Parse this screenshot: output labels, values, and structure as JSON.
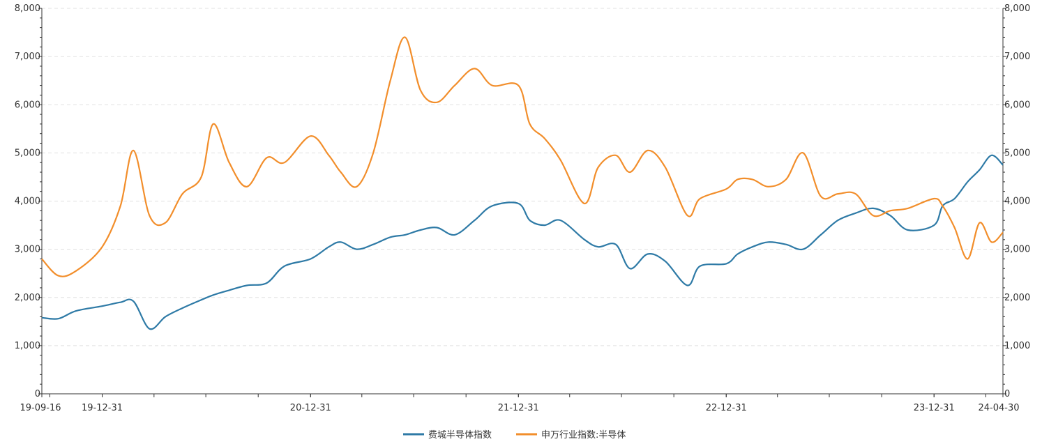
{
  "chart_data": {
    "type": "line",
    "x_tick_labels": [
      "19-09-16",
      "19-12-31",
      "20-12-31",
      "21-12-31",
      "22-12-31",
      "23-12-31",
      "24-04-30"
    ],
    "y_left": {
      "min": 0,
      "max": 8000,
      "ticks": [
        "0",
        "1,000",
        "2,000",
        "3,000",
        "4,000",
        "5,000",
        "6,000",
        "7,000",
        "8,000"
      ]
    },
    "y_right": {
      "min": 0,
      "max": 8000,
      "ticks": [
        "0",
        "1,000",
        "2,000",
        "3,000",
        "4,000",
        "5,000",
        "6,000",
        "7,000",
        "8,000"
      ]
    },
    "grid": "horizontal-dashed",
    "legend_position": "bottom-center",
    "x": [
      "19-09-16",
      "19-10-15",
      "19-11-15",
      "19-12-31",
      "20-02-01",
      "20-02-24",
      "20-03-23",
      "20-04-20",
      "20-05-20",
      "20-06-22",
      "20-07-13",
      "20-08-10",
      "20-09-10",
      "20-10-15",
      "20-11-15",
      "20-12-31",
      "21-02-01",
      "21-02-22",
      "21-03-22",
      "21-04-20",
      "21-05-20",
      "21-06-15",
      "21-07-12",
      "21-08-10",
      "21-09-10",
      "21-10-15",
      "21-11-15",
      "21-12-31",
      "22-01-20",
      "22-02-15",
      "22-03-15",
      "22-04-26",
      "22-05-20",
      "22-06-20",
      "22-07-15",
      "22-08-15",
      "22-09-15",
      "22-10-24",
      "22-11-15",
      "22-12-31",
      "23-01-20",
      "23-02-15",
      "23-03-15",
      "23-04-15",
      "23-05-15",
      "23-06-15",
      "23-07-15",
      "23-08-15",
      "23-09-15",
      "23-10-15",
      "23-11-15",
      "23-12-31",
      "24-01-15",
      "24-02-05",
      "24-02-28",
      "24-03-20",
      "24-04-10",
      "24-04-30"
    ],
    "series": [
      {
        "name": "费城半导体指数",
        "color": "#2E7AA6",
        "values": [
          1580,
          1560,
          1720,
          1820,
          1900,
          1920,
          1350,
          1600,
          1780,
          1950,
          2050,
          2150,
          2250,
          2300,
          2650,
          2800,
          3050,
          3150,
          3000,
          3100,
          3250,
          3300,
          3400,
          3450,
          3300,
          3600,
          3900,
          3950,
          3600,
          3500,
          3600,
          3200,
          3050,
          3100,
          2600,
          2900,
          2750,
          2250,
          2650,
          2700,
          2900,
          3050,
          3150,
          3100,
          3000,
          3300,
          3600,
          3750,
          3850,
          3700,
          3400,
          3500,
          3900,
          4050,
          4400,
          4650,
          4950,
          4750
        ]
      },
      {
        "name": "申万行业指数:半导体",
        "color": "#F28E2B",
        "values": [
          2800,
          2450,
          2550,
          3050,
          3900,
          5050,
          3700,
          3550,
          4150,
          4500,
          5600,
          4800,
          4300,
          4900,
          4800,
          5350,
          4950,
          4600,
          4300,
          5000,
          6500,
          7400,
          6300,
          6050,
          6400,
          6750,
          6400,
          6400,
          5600,
          5300,
          4850,
          3950,
          4700,
          4950,
          4600,
          5050,
          4700,
          3700,
          4050,
          4250,
          4450,
          4450,
          4300,
          4450,
          5000,
          4100,
          4150,
          4150,
          3700,
          3800,
          3850,
          4050,
          3900,
          3450,
          2800,
          3550,
          3150,
          3350
        ]
      }
    ]
  }
}
